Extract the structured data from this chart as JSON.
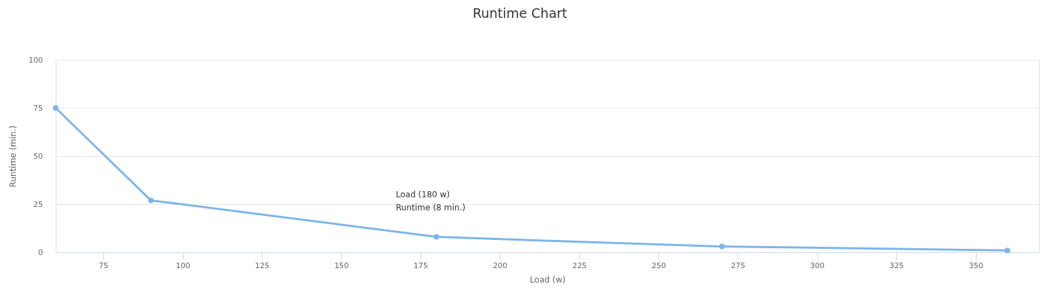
{
  "chart_data": {
    "type": "line",
    "title": "Runtime Chart",
    "xlabel": "Load (w)",
    "ylabel": "Runtime (min.)",
    "x": [
      60,
      90,
      180,
      270,
      360
    ],
    "series": [
      {
        "color": "#7cb5ec",
        "values": [
          75,
          27,
          8,
          3,
          1
        ]
      }
    ],
    "xlim": [
      60,
      370
    ],
    "xticks": [
      75,
      100,
      125,
      150,
      175,
      200,
      225,
      250,
      275,
      300,
      325,
      350
    ],
    "ylim": [
      0,
      100
    ],
    "yticks": [
      0,
      25,
      50,
      75,
      100
    ],
    "grid": "y",
    "marker": "circle",
    "line_style": "solid",
    "annotations": [
      "Load (180 w)",
      "Runtime (8 min.)"
    ]
  }
}
